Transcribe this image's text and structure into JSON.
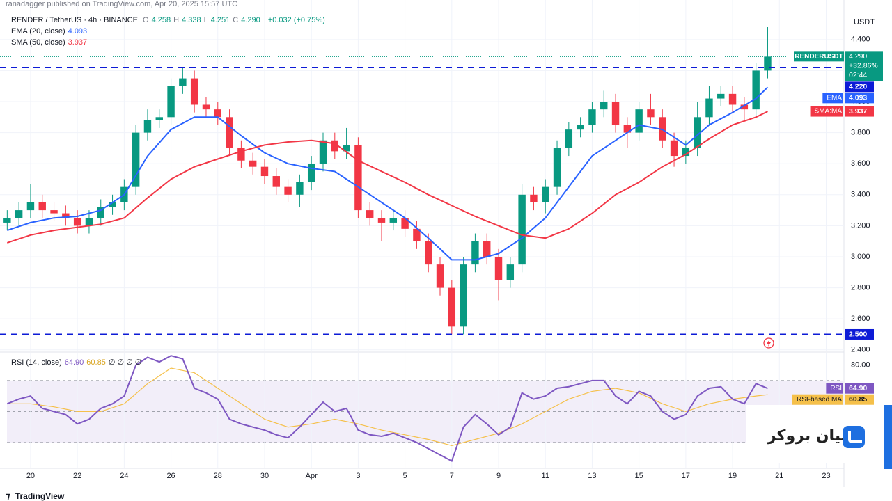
{
  "header": {
    "publisher": "ranadagger published on TradingView.com, Apr 20, 2025 15:57 UTC"
  },
  "chart_data": [
    {
      "type": "candlestick",
      "title": "RENDER / TetherUS · 4h · BINANCE",
      "quote": [
        {
          "key": "O",
          "value": "4.258"
        },
        {
          "key": "H",
          "value": "4.338"
        },
        {
          "key": "L",
          "value": "4.251"
        },
        {
          "key": "C",
          "value": "4.290"
        }
      ],
      "change": "+0.032 (+0.75%)",
      "axis_unit": "USDT",
      "up_color": "#089981",
      "down_color": "#f23645",
      "x": [
        19,
        19.5,
        20,
        20.5,
        21,
        21.5,
        22,
        22.5,
        23,
        23.5,
        24,
        24.5,
        25,
        25.5,
        26,
        26.5,
        27,
        27.5,
        28,
        28.5,
        29,
        29.5,
        30,
        30.5,
        31,
        31.5,
        32,
        32.5,
        33,
        33.5,
        34,
        34.5,
        35,
        35.5,
        36,
        36.5,
        37,
        37.5,
        38,
        38.5,
        39,
        39.5,
        40,
        40.5,
        41,
        41.5,
        42,
        42.5,
        43,
        43.5,
        44,
        44.5,
        45,
        45.5,
        46,
        46.5,
        47,
        47.5,
        48,
        48.5,
        49,
        49.5,
        50,
        50.5,
        51,
        51.5
      ],
      "open": [
        3.22,
        3.25,
        3.3,
        3.35,
        3.3,
        3.28,
        3.25,
        3.2,
        3.25,
        3.32,
        3.35,
        3.45,
        3.8,
        3.88,
        3.9,
        4.1,
        4.15,
        3.98,
        3.95,
        3.9,
        3.7,
        3.62,
        3.58,
        3.52,
        3.45,
        3.4,
        3.48,
        3.6,
        3.75,
        3.68,
        3.72,
        3.3,
        3.25,
        3.22,
        3.25,
        3.18,
        3.1,
        2.95,
        2.8,
        2.55,
        2.95,
        3.1,
        3,
        2.85,
        2.95,
        3.4,
        3.35,
        3.45,
        3.7,
        3.82,
        3.85,
        3.95,
        4,
        3.85,
        3.8,
        3.95,
        3.9,
        3.75,
        3.65,
        3.7,
        3.9,
        4.02,
        4.05,
        3.98,
        3.95,
        4.2
      ],
      "high": [
        3.3,
        3.35,
        3.47,
        3.4,
        3.35,
        3.33,
        3.3,
        3.3,
        3.37,
        3.4,
        3.5,
        3.85,
        3.95,
        3.95,
        4.15,
        4.22,
        4.2,
        4.03,
        4,
        3.95,
        3.75,
        3.67,
        3.63,
        3.57,
        3.5,
        3.53,
        3.65,
        3.8,
        3.8,
        3.83,
        3.77,
        3.35,
        3.3,
        3.3,
        3.3,
        3.23,
        3.15,
        3,
        2.85,
        3,
        3.15,
        3.15,
        3.05,
        3,
        3.47,
        3.45,
        3.5,
        3.75,
        3.87,
        3.9,
        4,
        4.07,
        4.05,
        3.9,
        4,
        4.05,
        3.95,
        3.8,
        3.75,
        4,
        4.1,
        4.1,
        4.1,
        4.03,
        4.25,
        4.48
      ],
      "low": [
        3.17,
        3.2,
        3.25,
        3.25,
        3.23,
        3.2,
        3.15,
        3.15,
        3.2,
        3.27,
        3.3,
        3.4,
        3.75,
        3.83,
        3.85,
        4.05,
        3.93,
        3.9,
        3.85,
        3.65,
        3.57,
        3.53,
        3.47,
        3.4,
        3.35,
        3.32,
        3.43,
        3.55,
        3.63,
        3.63,
        3.25,
        3.2,
        3.1,
        3.17,
        3.13,
        3.05,
        2.9,
        2.75,
        2.5,
        2.5,
        2.9,
        2.95,
        2.72,
        2.8,
        2.9,
        3.3,
        3.28,
        3.4,
        3.65,
        3.77,
        3.8,
        3.9,
        3.8,
        3.7,
        3.75,
        3.85,
        3.7,
        3.58,
        3.6,
        3.65,
        3.85,
        3.97,
        3.93,
        3.88,
        3.9,
        4.15
      ],
      "close": [
        3.25,
        3.3,
        3.35,
        3.3,
        3.28,
        3.25,
        3.2,
        3.25,
        3.32,
        3.35,
        3.45,
        3.8,
        3.88,
        3.9,
        4.1,
        4.15,
        3.98,
        3.95,
        3.9,
        3.7,
        3.62,
        3.58,
        3.52,
        3.45,
        3.4,
        3.48,
        3.6,
        3.75,
        3.68,
        3.72,
        3.3,
        3.25,
        3.22,
        3.25,
        3.18,
        3.1,
        2.95,
        2.8,
        2.55,
        2.95,
        3.1,
        3,
        2.85,
        2.95,
        3.4,
        3.35,
        3.45,
        3.7,
        3.82,
        3.85,
        3.95,
        4,
        3.85,
        3.8,
        3.95,
        3.9,
        3.75,
        3.65,
        3.7,
        3.9,
        4.02,
        4.05,
        3.98,
        3.95,
        4.2,
        4.29
      ],
      "series": [
        {
          "name": "EMA (20, close)",
          "tag": "EMA",
          "color": "#2962ff",
          "x": [
            19,
            20,
            21,
            22,
            23,
            24,
            25,
            26,
            27,
            28,
            29,
            30,
            31,
            32,
            33,
            34,
            35,
            36,
            37,
            38,
            39,
            40,
            41,
            42,
            43,
            44,
            45,
            46,
            47,
            48,
            49,
            50,
            51,
            51.5
          ],
          "values": [
            3.17,
            3.22,
            3.25,
            3.26,
            3.3,
            3.4,
            3.65,
            3.82,
            3.9,
            3.9,
            3.78,
            3.67,
            3.6,
            3.57,
            3.55,
            3.45,
            3.35,
            3.25,
            3.12,
            2.98,
            2.98,
            3.02,
            3.12,
            3.25,
            3.45,
            3.65,
            3.75,
            3.85,
            3.82,
            3.72,
            3.85,
            3.93,
            4.02,
            4.093
          ]
        },
        {
          "name": "SMA (50, close)",
          "tag": "SMA:MA",
          "color": "#f23645",
          "x": [
            19,
            20,
            21,
            22,
            23,
            24,
            25,
            26,
            27,
            28,
            29,
            30,
            31,
            32,
            33,
            34,
            35,
            36,
            37,
            38,
            39,
            40,
            41,
            42,
            43,
            44,
            45,
            46,
            47,
            48,
            49,
            50,
            51,
            51.5
          ],
          "values": [
            3.09,
            3.14,
            3.17,
            3.19,
            3.21,
            3.25,
            3.38,
            3.5,
            3.58,
            3.63,
            3.68,
            3.72,
            3.74,
            3.75,
            3.73,
            3.62,
            3.55,
            3.48,
            3.4,
            3.33,
            3.26,
            3.2,
            3.14,
            3.12,
            3.18,
            3.28,
            3.4,
            3.48,
            3.58,
            3.66,
            3.76,
            3.85,
            3.9,
            3.937
          ]
        }
      ],
      "levels": [
        {
          "value": 4.22,
          "label": "4.220"
        },
        {
          "value": 2.5,
          "label": "2.500"
        }
      ],
      "level_color": "#0d1bd6",
      "last": {
        "symbol": "RENDERUSDT",
        "value": 4.29,
        "price": "4.290",
        "change": "+32.86%",
        "countdown": "02:44"
      },
      "xlim": [
        18.99,
        54.7
      ],
      "ylim": [
        2.39,
        4.61
      ],
      "yticks": [
        {
          "value": 2.4,
          "label": "2.400"
        },
        {
          "value": 2.6,
          "label": "2.600"
        },
        {
          "value": 2.8,
          "label": "2.800"
        },
        {
          "value": 3,
          "label": "3.000"
        },
        {
          "value": 3.2,
          "label": "3.200"
        },
        {
          "value": 3.4,
          "label": "3.400"
        },
        {
          "value": 3.6,
          "label": "3.600"
        },
        {
          "value": 3.8,
          "label": "3.800"
        },
        {
          "value": 4,
          "label": "4.000"
        },
        {
          "value": 4.2,
          "label": "4.200"
        },
        {
          "value": 4.4,
          "label": "4.400"
        }
      ],
      "grid": true
    },
    {
      "type": "line",
      "title": "RSI (14, close)",
      "na": "∅ ∅ ∅ ∅",
      "series": [
        {
          "name": "RSI",
          "color": "#7e57c2",
          "last_label": "64.90",
          "x": [
            19,
            19.5,
            20,
            20.5,
            21,
            21.5,
            22,
            22.5,
            23,
            23.5,
            24,
            24.5,
            25,
            25.5,
            26,
            26.5,
            27,
            27.5,
            28,
            28.5,
            29,
            29.5,
            30,
            30.5,
            31,
            31.5,
            32,
            32.5,
            33,
            33.5,
            34,
            34.5,
            35,
            35.5,
            36,
            36.5,
            37,
            37.5,
            38,
            38.5,
            39,
            39.5,
            40,
            40.5,
            41,
            41.5,
            42,
            42.5,
            43,
            43.5,
            44,
            44.5,
            45,
            45.5,
            46,
            46.5,
            47,
            47.5,
            48,
            48.5,
            49,
            49.5,
            50,
            50.5,
            51,
            51.5
          ],
          "values": [
            55,
            58,
            60,
            52,
            50,
            48,
            42,
            45,
            52,
            55,
            60,
            80,
            85,
            82,
            86,
            84,
            65,
            62,
            58,
            45,
            42,
            40,
            38,
            35,
            33,
            40,
            48,
            56,
            50,
            52,
            38,
            35,
            34,
            36,
            33,
            30,
            26,
            22,
            18,
            40,
            48,
            42,
            35,
            40,
            62,
            58,
            60,
            65,
            66,
            68,
            70,
            70,
            60,
            55,
            63,
            60,
            50,
            45,
            48,
            60,
            65,
            66,
            58,
            55,
            68,
            64.9
          ]
        },
        {
          "name": "RSI-based MA",
          "color": "#f5c04a",
          "x": [
            19,
            20,
            21,
            22,
            23,
            24,
            25,
            26,
            27,
            28,
            29,
            30,
            31,
            32,
            33,
            34,
            35,
            36,
            37,
            38,
            39,
            40,
            41,
            42,
            43,
            44,
            45,
            46,
            47,
            48,
            49,
            50,
            51,
            51.5
          ],
          "values": [
            55,
            55,
            53,
            50,
            50,
            55,
            68,
            78,
            75,
            65,
            55,
            45,
            40,
            42,
            45,
            42,
            38,
            35,
            32,
            28,
            32,
            36,
            42,
            50,
            58,
            63,
            65,
            62,
            55,
            50,
            55,
            58,
            60,
            60.85
          ]
        }
      ],
      "levels": [
        70,
        50,
        30
      ],
      "xlim": [
        18.99,
        54.7
      ],
      "ylim": [
        13.8,
        87.9
      ],
      "yticks": [
        {
          "value": 80,
          "label": "80.00"
        }
      ],
      "xticks": [
        {
          "value": 20,
          "label": "20"
        },
        {
          "value": 22,
          "label": "22"
        },
        {
          "value": 24,
          "label": "24"
        },
        {
          "value": 26,
          "label": "26"
        },
        {
          "value": 28,
          "label": "28"
        },
        {
          "value": 30,
          "label": "30"
        },
        {
          "value": 32,
          "label": "Apr"
        },
        {
          "value": 34,
          "label": "3"
        },
        {
          "value": 36,
          "label": "5"
        },
        {
          "value": 38,
          "label": "7"
        },
        {
          "value": 40,
          "label": "9"
        },
        {
          "value": 42,
          "label": "11"
        },
        {
          "value": 44,
          "label": "13"
        },
        {
          "value": 46,
          "label": "15"
        },
        {
          "value": 48,
          "label": "17"
        },
        {
          "value": 50,
          "label": "19"
        },
        {
          "value": 52,
          "label": "21"
        },
        {
          "value": 54,
          "label": "23"
        }
      ]
    }
  ],
  "footer": {
    "brand": "TradingView"
  },
  "watermark": {
    "text": "ليان بروکر"
  }
}
